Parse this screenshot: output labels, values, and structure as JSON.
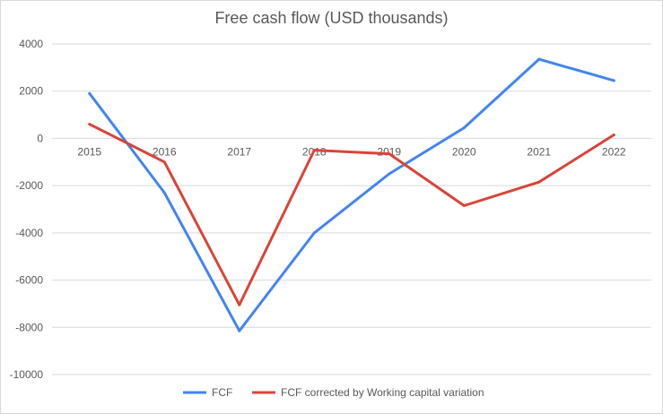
{
  "chart_data": {
    "type": "line",
    "title": "Free cash flow (USD thousands)",
    "xlabel": "",
    "ylabel": "",
    "categories": [
      "2015",
      "2016",
      "2017",
      "2018",
      "2019",
      "2020",
      "2021",
      "2022"
    ],
    "ylim": [
      -10000,
      4000
    ],
    "yticks": [
      "4000",
      "2000",
      "0",
      "-2000",
      "-4000",
      "-6000",
      "-8000",
      "-10000"
    ],
    "grid": true,
    "legend_position": "bottom",
    "series": [
      {
        "name": "FCF",
        "color": "#4285f4",
        "values": [
          1900,
          -2300,
          -8150,
          -4000,
          -1500,
          450,
          3350,
          2450
        ]
      },
      {
        "name": "FCF corrected by Working capital variation",
        "color": "#db4437",
        "values": [
          600,
          -1000,
          -7050,
          -500,
          -650,
          -2850,
          -1850,
          150
        ]
      }
    ]
  }
}
